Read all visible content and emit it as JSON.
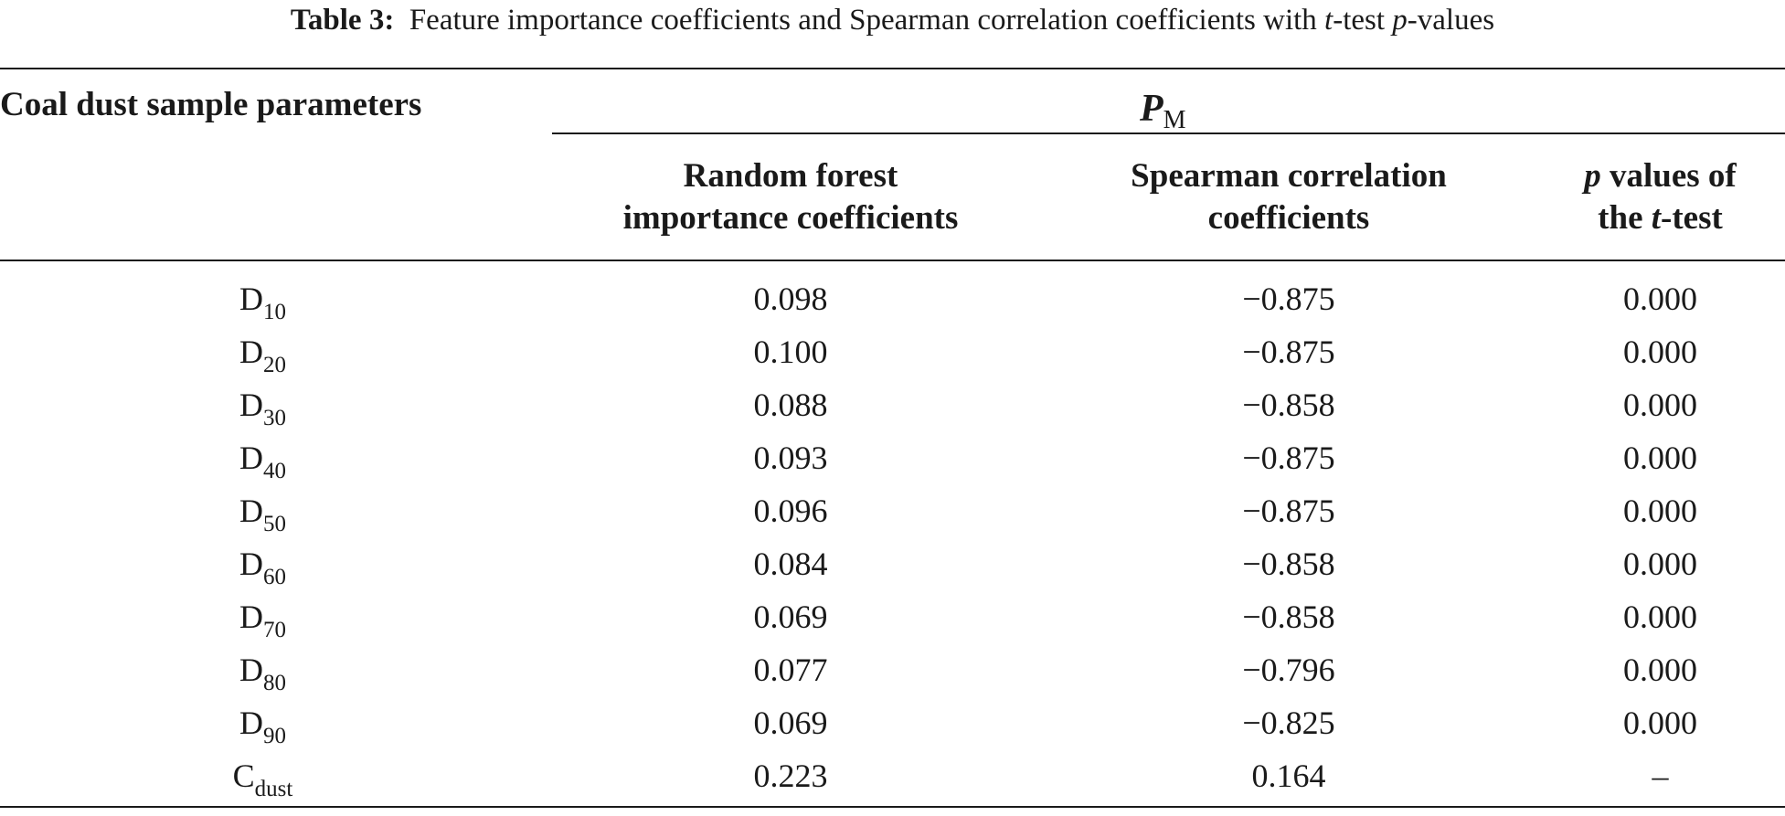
{
  "caption": {
    "label": "Table 3:",
    "part1": "Feature importance coefficients and Spearman correlation coefficients with ",
    "t": "t",
    "part2": "-test ",
    "p": "p",
    "part3": "-values"
  },
  "header": {
    "col0": "Coal dust sample parameters",
    "group_symbol": "P",
    "group_subscript": "M",
    "col1_line1": "Random forest",
    "col1_line2": "importance coefficients",
    "col2_line1": "Spearman correlation",
    "col2_line2": "coefficients",
    "col3_line1_italic": "p",
    "col3_line1_rest": " values of",
    "col3_line2_pre": "the ",
    "col3_line2_italic": "t",
    "col3_line2_post": "-test"
  },
  "rows": [
    {
      "base": "D",
      "sub": "10",
      "rf": "0.098",
      "spearman": "−0.875",
      "p": "0.000"
    },
    {
      "base": "D",
      "sub": "20",
      "rf": "0.100",
      "spearman": "−0.875",
      "p": "0.000"
    },
    {
      "base": "D",
      "sub": "30",
      "rf": "0.088",
      "spearman": "−0.858",
      "p": "0.000"
    },
    {
      "base": "D",
      "sub": "40",
      "rf": "0.093",
      "spearman": "−0.875",
      "p": "0.000"
    },
    {
      "base": "D",
      "sub": "50",
      "rf": "0.096",
      "spearman": "−0.875",
      "p": "0.000"
    },
    {
      "base": "D",
      "sub": "60",
      "rf": "0.084",
      "spearman": "−0.858",
      "p": "0.000"
    },
    {
      "base": "D",
      "sub": "70",
      "rf": "0.069",
      "spearman": "−0.858",
      "p": "0.000"
    },
    {
      "base": "D",
      "sub": "80",
      "rf": "0.077",
      "spearman": "−0.796",
      "p": "0.000"
    },
    {
      "base": "D",
      "sub": "90",
      "rf": "0.069",
      "spearman": "−0.825",
      "p": "0.000"
    },
    {
      "base": "C",
      "sub": "dust",
      "rf": "0.223",
      "spearman": "0.164",
      "p": "–"
    }
  ]
}
